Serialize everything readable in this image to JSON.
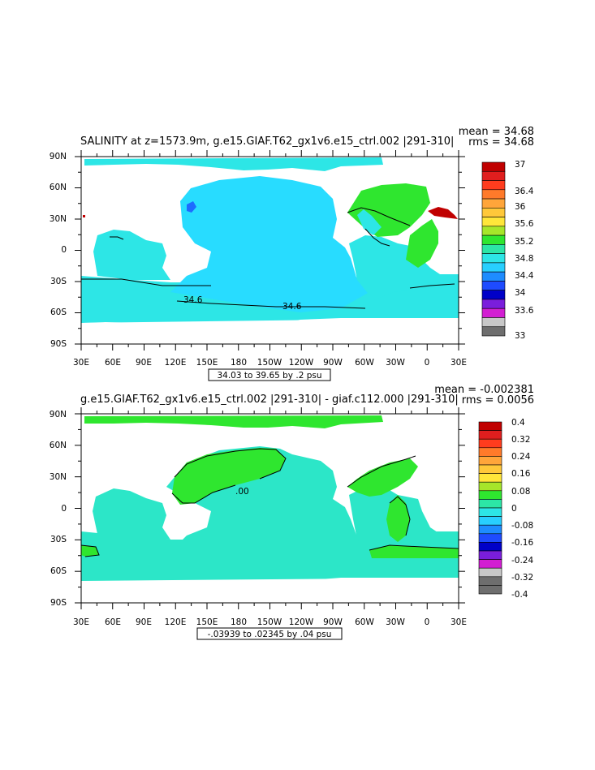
{
  "panel1": {
    "title": "SALINITY at z=1573.9m, g.e15.GIAF.T62_gx1v6.e15_ctrl.002 |291-310|",
    "mean": "mean = 34.68",
    "rms": "rms = 34.68",
    "range_box": "34.03 to 39.65 by .2 psu",
    "contour_labels": [
      "34.6",
      "34.6"
    ],
    "colorbar_labels": [
      "37",
      "36.4",
      "36",
      "35.6",
      "35.2",
      "34.8",
      "34.4",
      "34",
      "33.6",
      "33"
    ],
    "colorbar_colors": [
      "#c00000",
      "#e01e1e",
      "#ff3c1e",
      "#ff7a2a",
      "#ffa53a",
      "#ffc83a",
      "#ffe63a",
      "#a6e62a",
      "#2fe62f",
      "#2ce6a6",
      "#2de6e6",
      "#28cfff",
      "#1e8cff",
      "#1e4bff",
      "#0000c8",
      "#7a1edc",
      "#d21ed2",
      "#c8c8c8",
      "#6e6e6e"
    ]
  },
  "panel2": {
    "title": "g.e15.GIAF.T62_gx1v6.e15_ctrl.002 |291-310| - giaf.c112.000 |291-310|",
    "mean": "mean = -0.002381",
    "rms": "rms = 0.0056",
    "range_box": "-.03939 to .02345 by .04 psu",
    "contour_labels": [
      ".00"
    ],
    "colorbar_labels": [
      "0.4",
      "0.32",
      "0.24",
      "0.16",
      "0.08",
      "0",
      "-0.08",
      "-0.16",
      "-0.24",
      "-0.32",
      "-0.4"
    ],
    "colorbar_colors": [
      "#c00000",
      "#e01e1e",
      "#ff3c1e",
      "#ff7a2a",
      "#ffa53a",
      "#ffc83a",
      "#ffe63a",
      "#a6e62a",
      "#2fe62f",
      "#2ce6a6",
      "#2de6e6",
      "#28cfff",
      "#1e8cff",
      "#1e4bff",
      "#0000c8",
      "#7a1edc",
      "#d21ed2",
      "#c8c8c8",
      "#6e6e6e",
      "#6e6e6e"
    ]
  },
  "axes": {
    "lat_labels": [
      "90N",
      "60N",
      "30N",
      "0",
      "30S",
      "60S",
      "90S"
    ],
    "lon_labels": [
      "30E",
      "60E",
      "90E",
      "120E",
      "150E",
      "180",
      "150W",
      "120W",
      "90W",
      "60W",
      "30W",
      "0",
      "30E"
    ]
  },
  "colors": {
    "ocean_light": "#2de6e6",
    "ocean_sky": "#28dcff",
    "green": "#2fe62f",
    "mint": "#2ce6c8",
    "red": "#c00000",
    "blue": "#1e6bff"
  }
}
